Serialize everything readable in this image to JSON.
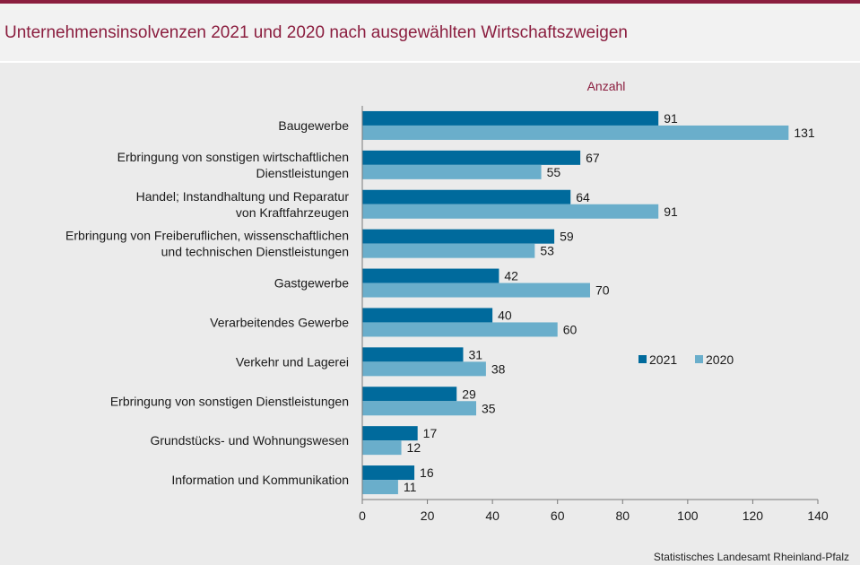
{
  "title": "Unternehmensinsolvenzen 2021 und 2020 nach ausgewählten Wirtschaftszweigen",
  "source": "Statistisches Landesamt  Rheinland-Pfalz",
  "chart_data": {
    "type": "bar",
    "orientation": "horizontal",
    "title": "Unternehmensinsolvenzen 2021 und 2020 nach ausgewählten Wirtschaftszweigen",
    "xlabel": "Anzahl",
    "ylabel": "",
    "xlim": [
      0,
      140
    ],
    "xticks": [
      0,
      20,
      40,
      60,
      80,
      100,
      120,
      140
    ],
    "grid": false,
    "legend_position": "center-right",
    "categories": [
      [
        "Baugewerbe"
      ],
      [
        "Erbringung von sonstigen wirtschaftlichen",
        "Dienstleistungen"
      ],
      [
        "Handel; Instandhaltung und Reparatur",
        "von Kraftfahrzeugen"
      ],
      [
        "Erbringung von Freiberuflichen, wissenschaftlichen",
        "und technischen Dienstleistungen"
      ],
      [
        "Gastgewerbe"
      ],
      [
        "Verarbeitendes Gewerbe"
      ],
      [
        "Verkehr und Lagerei"
      ],
      [
        "Erbringung von sonstigen Dienstleistungen"
      ],
      [
        "Grundstücks- und Wohnungswesen"
      ],
      [
        "Information und Kommunikation"
      ]
    ],
    "series": [
      {
        "name": "2021",
        "color": "#006a9c",
        "values": [
          91,
          67,
          64,
          59,
          42,
          40,
          31,
          29,
          17,
          16
        ]
      },
      {
        "name": "2020",
        "color": "#6aaecb",
        "values": [
          131,
          55,
          91,
          53,
          70,
          60,
          38,
          35,
          12,
          11
        ]
      }
    ]
  }
}
